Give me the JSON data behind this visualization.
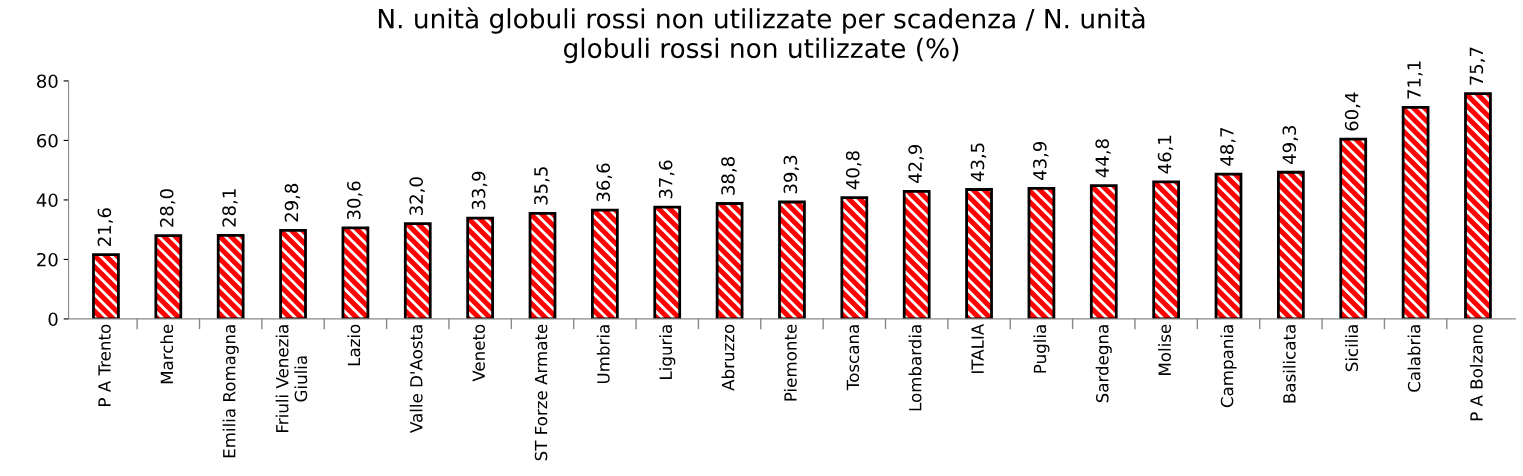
{
  "chart_data": {
    "type": "bar",
    "title": "N. unità globuli rossi non utilizzate per scadenza / N. unità\nglobuli rossi non utilizzate (%)",
    "categories": [
      "P A Trento",
      "Marche",
      "Emilia Romagna",
      "Friuli Venezia\nGiulia",
      "Lazio",
      "Valle D'Aosta",
      "Veneto",
      "ST Forze Armate",
      "Umbria",
      "Liguria",
      "Abruzzo",
      "Piemonte",
      "Toscana",
      "Lombardia",
      "ITALIA",
      "Puglia",
      "Sardegna",
      "Molise",
      "Campania",
      "Basilicata",
      "Sicilia",
      "Calabria",
      "P A Bolzano"
    ],
    "values": [
      21.6,
      28.0,
      28.1,
      29.8,
      30.6,
      32.0,
      33.9,
      35.5,
      36.6,
      37.6,
      38.8,
      39.3,
      40.8,
      42.9,
      43.5,
      43.9,
      44.8,
      46.1,
      48.7,
      49.3,
      60.4,
      71.1,
      75.7
    ],
    "value_labels": [
      "21,6",
      "28,0",
      "28,1",
      "29,8",
      "30,6",
      "32,0",
      "33,9",
      "35,5",
      "36,6",
      "37,6",
      "38,8",
      "39,3",
      "40,8",
      "42,9",
      "43,5",
      "43,9",
      "44,8",
      "46,1",
      "48,7",
      "49,3",
      "60,4",
      "71,1",
      "75,7"
    ],
    "color": "#ff0000",
    "ylim": [
      0,
      80
    ],
    "yticks": [
      0,
      20,
      40,
      60,
      80
    ],
    "grid": false,
    "legend": false
  }
}
